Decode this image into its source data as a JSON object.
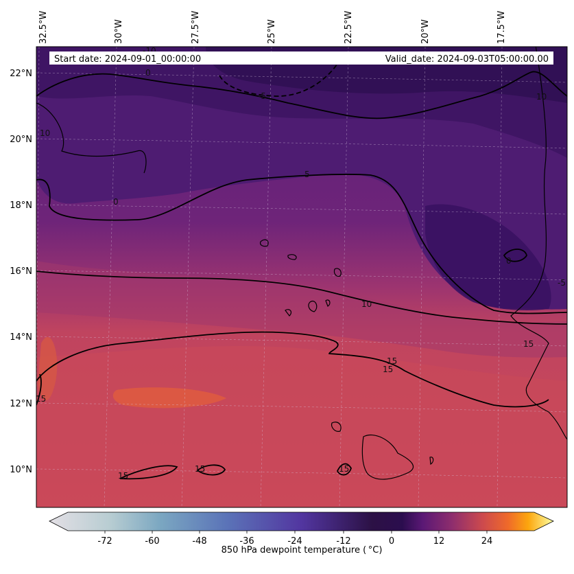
{
  "header": {
    "start_date": "Start date: 2024-09-01_00:00:00",
    "valid_date": "Valid_date: 2024-09-03T05:00:00.00"
  },
  "lon_labels": [
    "32.5°W",
    "30°W",
    "27.5°W",
    "25°W",
    "22.5°W",
    "20°W",
    "17.5°W"
  ],
  "lat_labels": [
    "22°N",
    "20°N",
    "18°N",
    "16°N",
    "14°N",
    "12°N",
    "10°N"
  ],
  "contour_labels": [
    "-10",
    "0",
    "-5",
    "10",
    "5",
    "0",
    "10",
    "0",
    "-5",
    "10",
    "15",
    "15",
    "15",
    "15",
    "15",
    "15",
    "15"
  ],
  "colorbar": {
    "label": "850 hPa dewpoint temperature ( °C)",
    "ticks": [
      "-72",
      "-60",
      "-48",
      "-36",
      "-24",
      "-12",
      "0",
      "12",
      "24"
    ],
    "range": [
      -84,
      36
    ],
    "colors": [
      "#e3dfe5",
      "#a9c2c7",
      "#5b8fbf",
      "#5a64b6",
      "#4b2c95",
      "#2c1145",
      "#4a1070",
      "#7a2a7a",
      "#b3435f",
      "#e25c3a",
      "#fb8a14",
      "#fbd53a",
      "#fcffa4"
    ]
  },
  "map": {
    "colors": {
      "dry_dark": "#3b1560",
      "dry": "#4e1c72",
      "mid": "#8a2e76",
      "moist": "#c24657",
      "warm": "#d9553e",
      "contour": "#000000"
    }
  }
}
